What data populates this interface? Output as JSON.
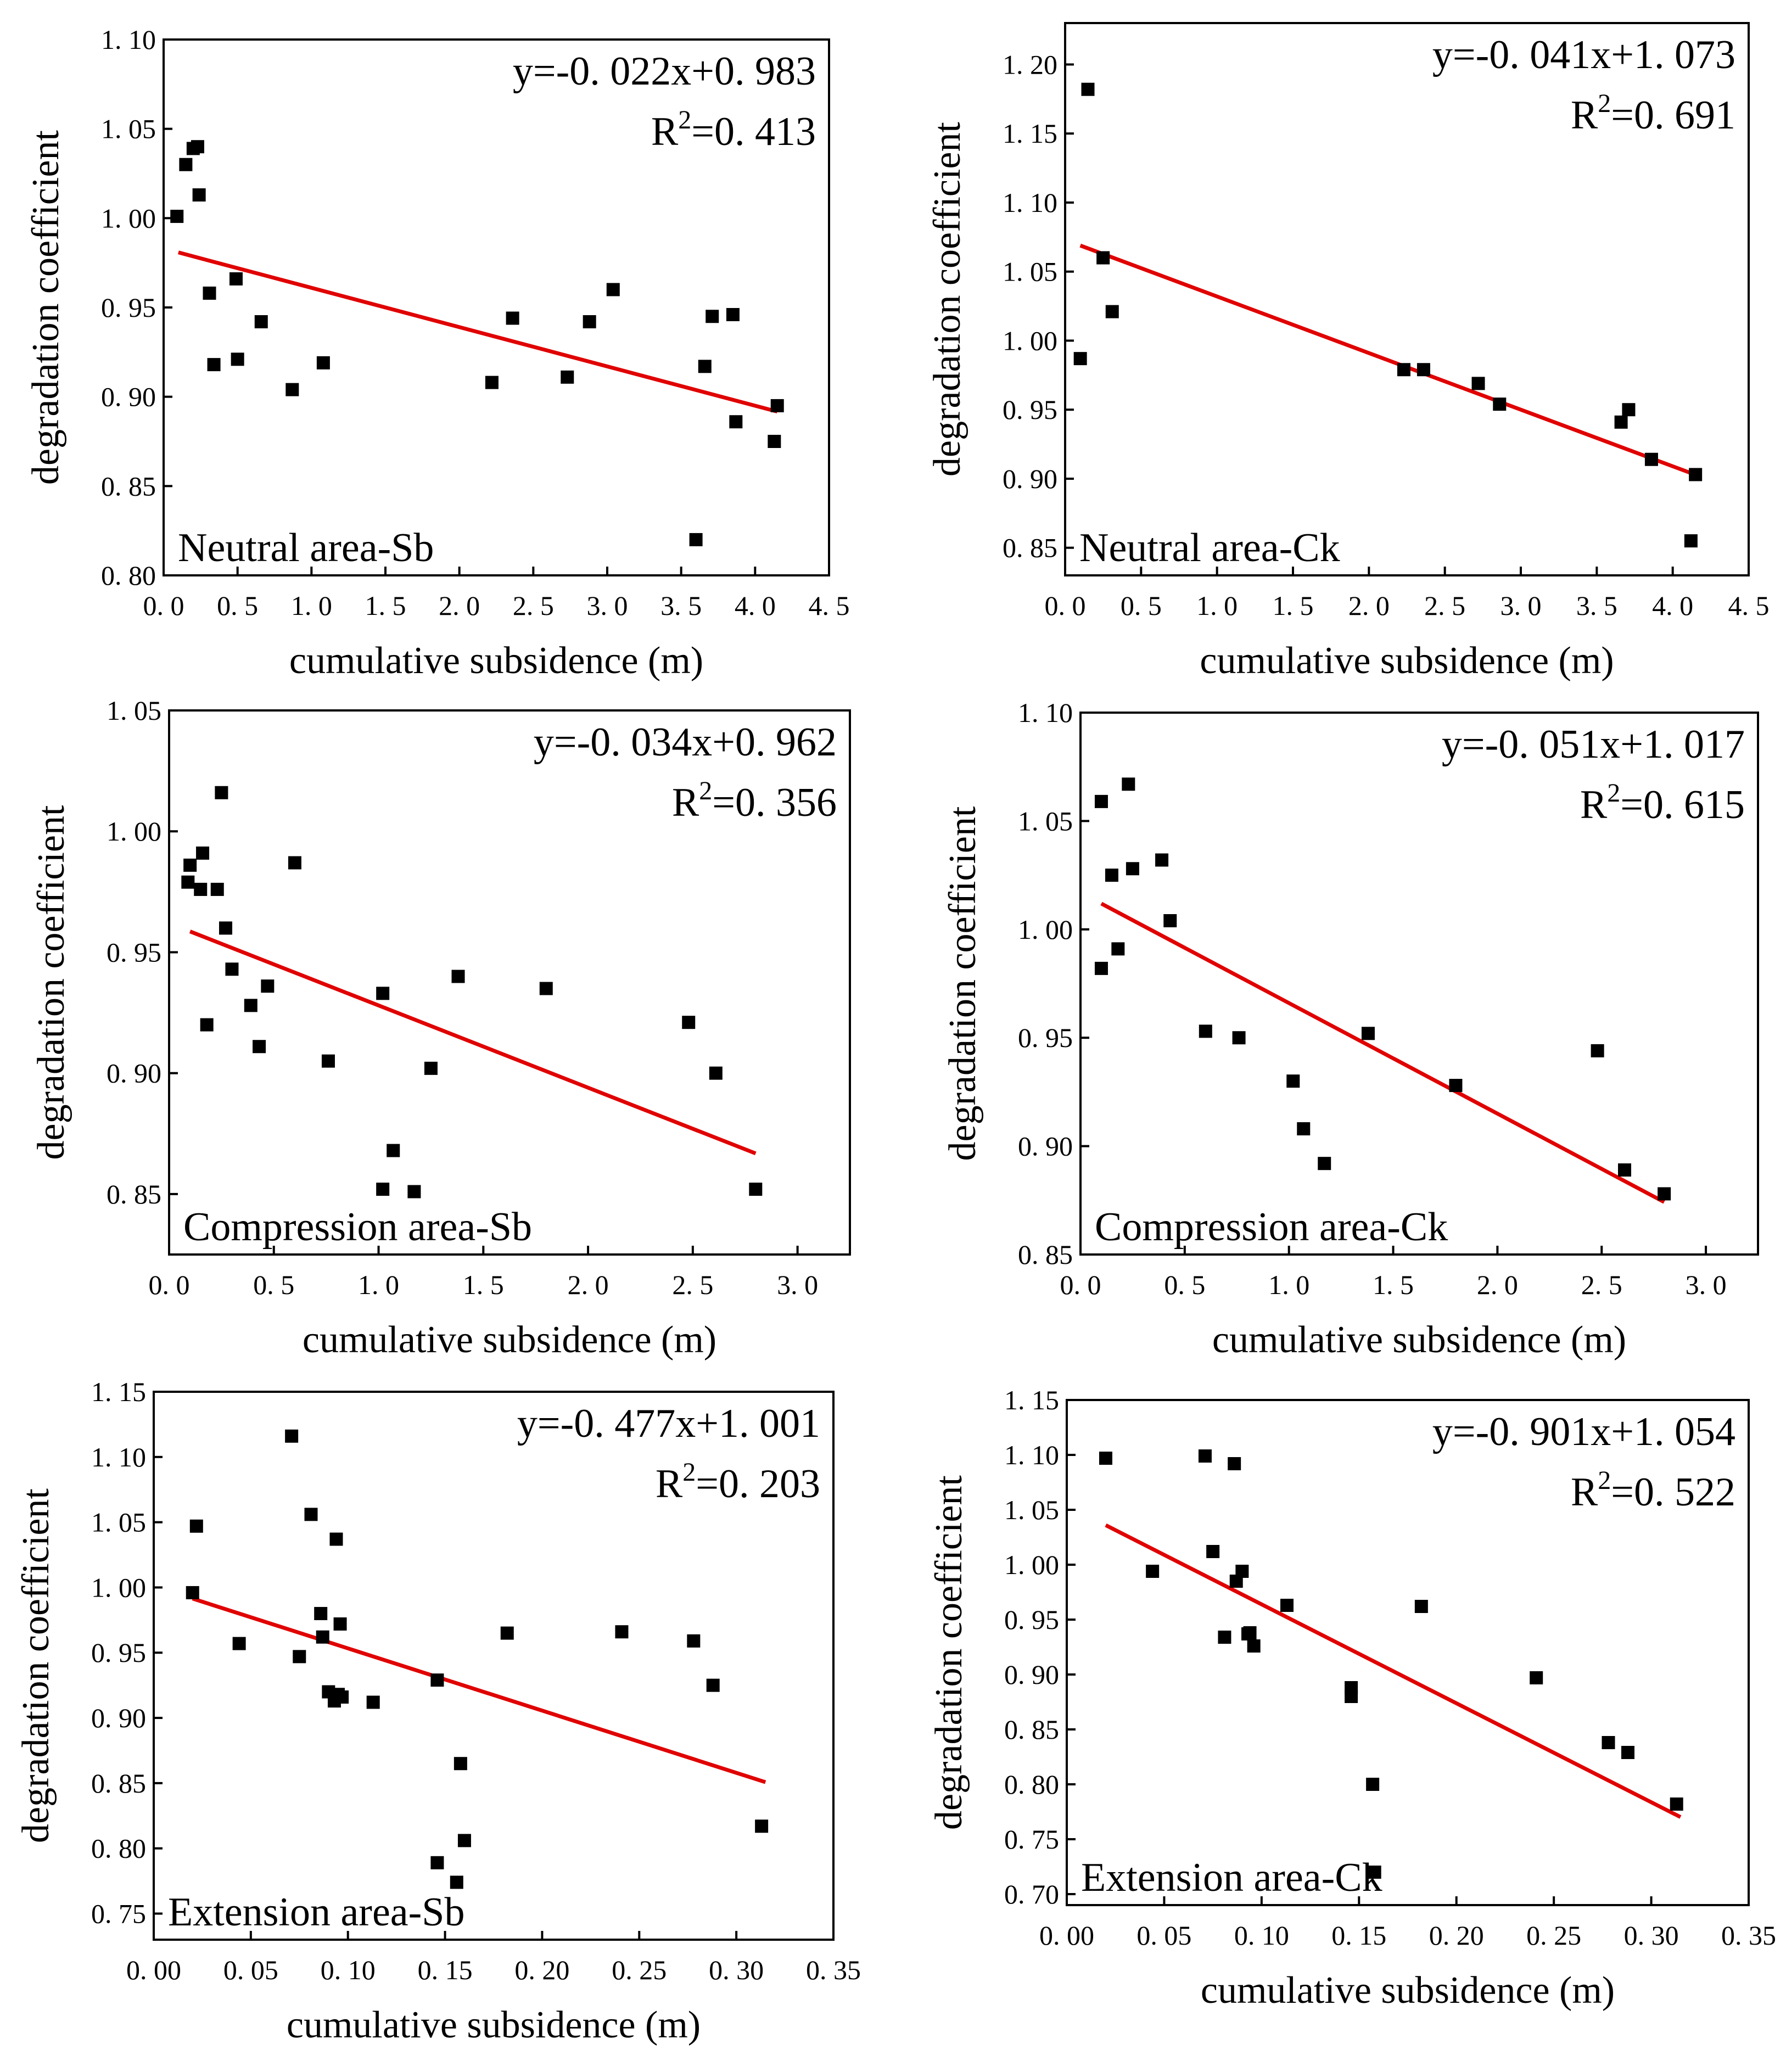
{
  "chart_data": [
    {
      "type": "scatter",
      "id": "neutral-sb",
      "label": "Neutral area-Sb",
      "equation": "y=-0. 022x+0. 983",
      "r2_prefix": "R",
      "r2_exp": "2",
      "r2_value": "=0. 413",
      "xlabel": "cumulative subsidence (m)",
      "ylabel": "degradation coefficient",
      "xlim": [
        0,
        4.5
      ],
      "ylim": [
        0.8,
        1.1
      ],
      "xticks": [
        0,
        0.5,
        1.0,
        1.5,
        2.0,
        2.5,
        3.0,
        3.5,
        4.0,
        4.5
      ],
      "xtick_labels": [
        "0. 0",
        "0. 5",
        "1. 0",
        "1. 5",
        "2. 0",
        "2. 5",
        "3. 0",
        "3. 5",
        "4. 0",
        "4. 5"
      ],
      "yticks": [
        0.8,
        0.85,
        0.9,
        0.95,
        1.0,
        1.05,
        1.1
      ],
      "ytick_labels": [
        "0. 80",
        "0. 85",
        "0. 90",
        "0. 95",
        "1. 00",
        "1. 05",
        "1. 10"
      ],
      "fit": {
        "slope": -0.022,
        "intercept": 0.983,
        "x_range": [
          0.1,
          4.15
        ],
        "color": "#e00000"
      },
      "points": [
        [
          0.09,
          1.001
        ],
        [
          0.15,
          1.03
        ],
        [
          0.2,
          1.039
        ],
        [
          0.23,
          1.04
        ],
        [
          0.24,
          1.013
        ],
        [
          0.31,
          0.958
        ],
        [
          0.34,
          0.918
        ],
        [
          0.49,
          0.966
        ],
        [
          0.5,
          0.921
        ],
        [
          0.66,
          0.942
        ],
        [
          0.87,
          0.904
        ],
        [
          1.08,
          0.919
        ],
        [
          2.22,
          0.908
        ],
        [
          2.36,
          0.944
        ],
        [
          2.73,
          0.911
        ],
        [
          2.88,
          0.942
        ],
        [
          3.04,
          0.96
        ],
        [
          3.6,
          0.82
        ],
        [
          3.66,
          0.917
        ],
        [
          3.71,
          0.945
        ],
        [
          3.85,
          0.946
        ],
        [
          3.87,
          0.886
        ],
        [
          4.13,
          0.875
        ],
        [
          4.15,
          0.895
        ]
      ]
    },
    {
      "type": "scatter",
      "id": "neutral-ck",
      "label": "Neutral area-Ck",
      "equation": "y=-0. 041x+1. 073",
      "r2_prefix": "R",
      "r2_exp": "2",
      "r2_value": "=0. 691",
      "xlabel": "cumulative subsidence (m)",
      "ylabel": "degradation coefficient",
      "xlim": [
        0,
        4.5
      ],
      "ylim": [
        0.83,
        1.23
      ],
      "xticks": [
        0,
        0.5,
        1.0,
        1.5,
        2.0,
        2.5,
        3.0,
        3.5,
        4.0,
        4.5
      ],
      "xtick_labels": [
        "0. 0",
        "0. 5",
        "1. 0",
        "1. 5",
        "2. 0",
        "2. 5",
        "3. 0",
        "3. 5",
        "4. 0",
        "4. 5"
      ],
      "yticks": [
        0.85,
        0.9,
        0.95,
        1.0,
        1.05,
        1.1,
        1.15,
        1.2
      ],
      "ytick_labels": [
        "0. 85",
        "0. 90",
        "0. 95",
        "1. 00",
        "1. 05",
        "1. 10",
        "1. 15",
        "1. 20"
      ],
      "fit": {
        "slope": -0.041,
        "intercept": 1.073,
        "x_range": [
          0.1,
          4.15
        ],
        "color": "#e00000"
      },
      "points": [
        [
          0.1,
          0.987
        ],
        [
          0.15,
          1.182
        ],
        [
          0.25,
          1.06
        ],
        [
          0.31,
          1.021
        ],
        [
          2.23,
          0.979
        ],
        [
          2.36,
          0.979
        ],
        [
          2.72,
          0.969
        ],
        [
          2.86,
          0.954
        ],
        [
          3.66,
          0.941
        ],
        [
          3.71,
          0.95
        ],
        [
          3.86,
          0.914
        ],
        [
          4.12,
          0.855
        ],
        [
          4.15,
          0.903
        ]
      ]
    },
    {
      "type": "scatter",
      "id": "compression-sb",
      "label": "Compression area-Sb",
      "equation": "y=-0. 034x+0. 962",
      "r2_prefix": "R",
      "r2_exp": "2",
      "r2_value": "=0. 356",
      "xlabel": "cumulative subsidence (m)",
      "ylabel": "degradation coefficient",
      "xlim": [
        0,
        3.25
      ],
      "ylim": [
        0.825,
        1.05
      ],
      "xticks": [
        0,
        0.5,
        1.0,
        1.5,
        2.0,
        2.5,
        3.0
      ],
      "xtick_labels": [
        "0. 0",
        "0. 5",
        "1. 0",
        "1. 5",
        "2. 0",
        "2. 5",
        "3. 0"
      ],
      "yticks": [
        0.85,
        0.9,
        0.95,
        1.0,
        1.05
      ],
      "ytick_labels": [
        "0. 85",
        "0. 90",
        "0. 95",
        "1. 00",
        "1. 05"
      ],
      "fit": {
        "slope": -0.034,
        "intercept": 0.962,
        "x_range": [
          0.1,
          2.8
        ],
        "color": "#e00000"
      },
      "points": [
        [
          0.09,
          0.979
        ],
        [
          0.1,
          0.986
        ],
        [
          0.15,
          0.976
        ],
        [
          0.16,
          0.991
        ],
        [
          0.18,
          0.92
        ],
        [
          0.23,
          0.976
        ],
        [
          0.25,
          1.016
        ],
        [
          0.27,
          0.96
        ],
        [
          0.3,
          0.943
        ],
        [
          0.39,
          0.928
        ],
        [
          0.43,
          0.911
        ],
        [
          0.47,
          0.936
        ],
        [
          0.6,
          0.987
        ],
        [
          0.76,
          0.905
        ],
        [
          1.02,
          0.933
        ],
        [
          1.02,
          0.852
        ],
        [
          1.07,
          0.868
        ],
        [
          1.17,
          0.851
        ],
        [
          1.25,
          0.902
        ],
        [
          1.38,
          0.94
        ],
        [
          1.8,
          0.935
        ],
        [
          2.48,
          0.921
        ],
        [
          2.61,
          0.9
        ],
        [
          2.8,
          0.852
        ]
      ]
    },
    {
      "type": "scatter",
      "id": "compression-ck",
      "label": "Compression area-Ck",
      "equation": "y=-0. 051x+1. 017",
      "r2_prefix": "R",
      "r2_exp": "2",
      "r2_value": "=0. 615",
      "xlabel": "cumulative subsidence (m)",
      "ylabel": "degradation coefficient",
      "xlim": [
        0,
        3.25
      ],
      "ylim": [
        0.85,
        1.1
      ],
      "xticks": [
        0,
        0.5,
        1.0,
        1.5,
        2.0,
        2.5,
        3.0
      ],
      "xtick_labels": [
        "0. 0",
        "0. 5",
        "1. 0",
        "1. 5",
        "2. 0",
        "2. 5",
        "3. 0"
      ],
      "yticks": [
        0.85,
        0.9,
        0.95,
        1.0,
        1.05,
        1.1
      ],
      "ytick_labels": [
        "0. 85",
        "0. 90",
        "0. 95",
        "1. 00",
        "1. 05",
        "1. 10"
      ],
      "fit": {
        "slope": -0.051,
        "intercept": 1.017,
        "x_range": [
          0.1,
          2.8
        ],
        "color": "#e00000"
      },
      "points": [
        [
          0.1,
          1.059
        ],
        [
          0.1,
          0.982
        ],
        [
          0.15,
          1.025
        ],
        [
          0.18,
          0.991
        ],
        [
          0.23,
          1.067
        ],
        [
          0.25,
          1.028
        ],
        [
          0.39,
          1.032
        ],
        [
          0.43,
          1.004
        ],
        [
          0.6,
          0.953
        ],
        [
          0.76,
          0.95
        ],
        [
          1.02,
          0.93
        ],
        [
          1.07,
          0.908
        ],
        [
          1.17,
          0.892
        ],
        [
          1.38,
          0.952
        ],
        [
          1.8,
          0.928
        ],
        [
          2.48,
          0.944
        ],
        [
          2.61,
          0.889
        ],
        [
          2.8,
          0.878
        ]
      ]
    },
    {
      "type": "scatter",
      "id": "extension-sb",
      "label": "Extension area-Sb",
      "equation": "y=-0. 477x+1. 001",
      "r2_prefix": "R",
      "r2_exp": "2",
      "r2_value": "=0. 203",
      "xlabel": "cumulative subsidence (m)",
      "ylabel": "degradation coefficient",
      "xlim": [
        0,
        0.35
      ],
      "ylim": [
        0.73,
        1.15
      ],
      "xticks": [
        0,
        0.05,
        0.1,
        0.15,
        0.2,
        0.25,
        0.3,
        0.35
      ],
      "xtick_labels": [
        "0. 00",
        "0. 05",
        "0. 10",
        "0. 15",
        "0. 20",
        "0. 25",
        "0. 30",
        "0. 35"
      ],
      "yticks": [
        0.75,
        0.8,
        0.85,
        0.9,
        0.95,
        1.0,
        1.05,
        1.1,
        1.15
      ],
      "ytick_labels": [
        "0. 75",
        "0. 80",
        "0. 85",
        "0. 90",
        "0. 95",
        "1. 00",
        "1. 05",
        "1. 10",
        "1. 15"
      ],
      "fit": {
        "slope": -0.477,
        "intercept": 1.001,
        "x_range": [
          0.02,
          0.315
        ],
        "color": "#e00000"
      },
      "points": [
        [
          0.02,
          0.996
        ],
        [
          0.022,
          1.047
        ],
        [
          0.044,
          0.957
        ],
        [
          0.071,
          1.116
        ],
        [
          0.075,
          0.947
        ],
        [
          0.081,
          1.056
        ],
        [
          0.086,
          0.98
        ],
        [
          0.087,
          0.962
        ],
        [
          0.09,
          0.92
        ],
        [
          0.093,
          0.913
        ],
        [
          0.094,
          1.037
        ],
        [
          0.095,
          0.918
        ],
        [
          0.096,
          0.972
        ],
        [
          0.097,
          0.916
        ],
        [
          0.113,
          0.912
        ],
        [
          0.146,
          0.789
        ],
        [
          0.146,
          0.929
        ],
        [
          0.156,
          0.774
        ],
        [
          0.158,
          0.865
        ],
        [
          0.16,
          0.806
        ],
        [
          0.182,
          0.965
        ],
        [
          0.241,
          0.966
        ],
        [
          0.278,
          0.959
        ],
        [
          0.288,
          0.925
        ],
        [
          0.313,
          0.817
        ]
      ]
    },
    {
      "type": "scatter",
      "id": "extension-ck",
      "label": "Extension area-Ck",
      "equation": "y=-0. 901x+1. 054",
      "r2_prefix": "R",
      "r2_exp": "2",
      "r2_value": "=0. 522",
      "xlabel": "cumulative subsidence (m)",
      "ylabel": "degradation coefficient",
      "xlim": [
        0,
        0.35
      ],
      "ylim": [
        0.69,
        1.15
      ],
      "xticks": [
        0,
        0.05,
        0.1,
        0.15,
        0.2,
        0.25,
        0.3,
        0.35
      ],
      "xtick_labels": [
        "0. 00",
        "0. 05",
        "0. 10",
        "0. 15",
        "0. 20",
        "0. 25",
        "0. 30",
        "0. 35"
      ],
      "yticks": [
        0.7,
        0.75,
        0.8,
        0.85,
        0.9,
        0.95,
        1.0,
        1.05,
        1.1,
        1.15
      ],
      "ytick_labels": [
        "0. 70",
        "0. 75",
        "0. 80",
        "0. 85",
        "0. 90",
        "0. 95",
        "1. 00",
        "1. 05",
        "1. 10",
        "1. 15"
      ],
      "fit": {
        "slope": -0.901,
        "intercept": 1.054,
        "x_range": [
          0.02,
          0.315
        ],
        "color": "#e00000"
      },
      "points": [
        [
          0.02,
          1.097
        ],
        [
          0.044,
          0.994
        ],
        [
          0.071,
          1.099
        ],
        [
          0.075,
          1.012
        ],
        [
          0.081,
          0.934
        ],
        [
          0.086,
          1.092
        ],
        [
          0.087,
          0.985
        ],
        [
          0.09,
          0.994
        ],
        [
          0.093,
          0.937
        ],
        [
          0.094,
          0.938
        ],
        [
          0.096,
          0.926
        ],
        [
          0.113,
          0.963
        ],
        [
          0.146,
          0.888
        ],
        [
          0.146,
          0.88
        ],
        [
          0.157,
          0.8
        ],
        [
          0.158,
          0.72
        ],
        [
          0.182,
          0.962
        ],
        [
          0.241,
          0.897
        ],
        [
          0.278,
          0.838
        ],
        [
          0.288,
          0.829
        ],
        [
          0.313,
          0.782
        ]
      ]
    }
  ]
}
